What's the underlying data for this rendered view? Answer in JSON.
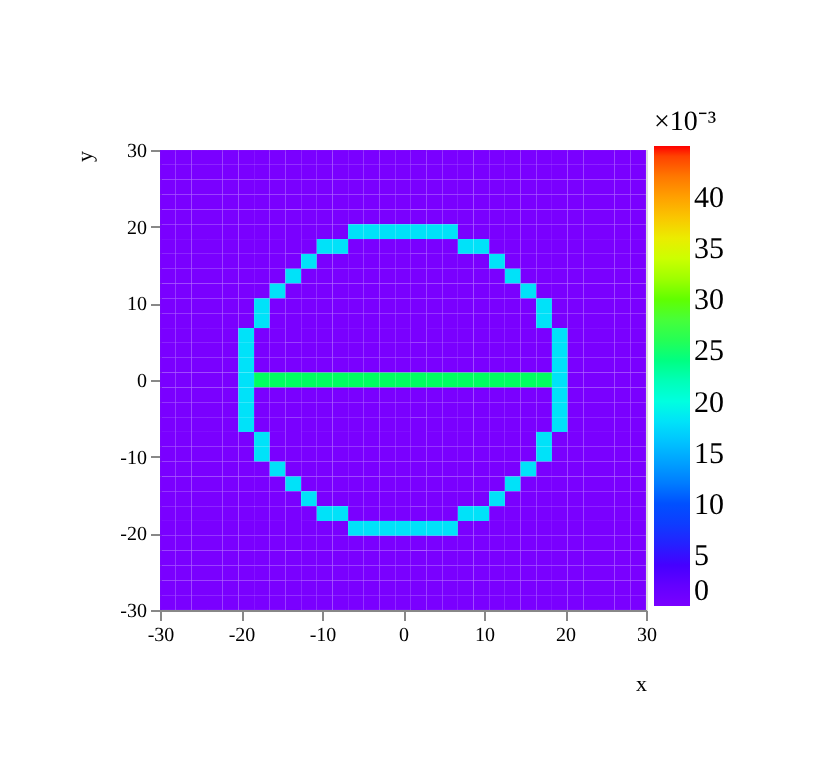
{
  "chart_data": {
    "type": "heatmap",
    "xlabel": "x",
    "ylabel": "y",
    "clabel": "×10⁻³",
    "x": [
      -29.03,
      -27.1,
      -25.16,
      -23.23,
      -21.29,
      -19.35,
      -17.42,
      -15.48,
      -13.55,
      -11.61,
      -9.68,
      -7.74,
      -5.81,
      -3.87,
      -1.94,
      0,
      1.94,
      3.87,
      5.81,
      7.74,
      9.68,
      11.61,
      13.55,
      15.48,
      17.42,
      19.35,
      21.29,
      23.23,
      25.16,
      27.1,
      29.03
    ],
    "y": [
      29.03,
      27.1,
      25.16,
      23.23,
      21.29,
      19.35,
      17.42,
      15.48,
      13.55,
      11.61,
      9.68,
      7.74,
      5.81,
      3.87,
      1.94,
      0,
      -1.94,
      -3.87,
      -5.81,
      -7.74,
      -9.68,
      -11.61,
      -13.55,
      -15.48,
      -17.42,
      -19.35,
      -21.29,
      -23.23,
      -25.16,
      -27.1,
      -29.03
    ],
    "xlim": [
      -30,
      30
    ],
    "ylim": [
      -30,
      30
    ],
    "xticks": [
      -30,
      -20,
      -10,
      0,
      10,
      20,
      30
    ],
    "yticks": [
      -30,
      -20,
      -10,
      0,
      10,
      20,
      30
    ],
    "clim": [
      0,
      45
    ],
    "cticks": [
      0,
      5,
      10,
      15,
      20,
      25,
      30,
      35,
      40
    ],
    "cells": [
      [
        0,
        0,
        0,
        0,
        0,
        0,
        0,
        0,
        0,
        0,
        0,
        0,
        0,
        0,
        0,
        0,
        0,
        0,
        0,
        0,
        0,
        0,
        0,
        0,
        0,
        0,
        0,
        0,
        0,
        0,
        0
      ],
      [
        0,
        0,
        0,
        0,
        0,
        0,
        0,
        0,
        0,
        0,
        0,
        0,
        0,
        0,
        0,
        0,
        0,
        0,
        0,
        0,
        0,
        0,
        0,
        0,
        0,
        0,
        0,
        0,
        0,
        0,
        0
      ],
      [
        0,
        0,
        0,
        0,
        0,
        0,
        0,
        0,
        0,
        0,
        0,
        0,
        0,
        0,
        0,
        0,
        0,
        0,
        0,
        0,
        0,
        0,
        0,
        0,
        0,
        0,
        0,
        0,
        0,
        0,
        0
      ],
      [
        0,
        0,
        0,
        0,
        0,
        0,
        0,
        0,
        0,
        0,
        0,
        0,
        0,
        0,
        0,
        0,
        0,
        0,
        0,
        0,
        0,
        0,
        0,
        0,
        0,
        0,
        0,
        0,
        0,
        0,
        0
      ],
      [
        0,
        0,
        0,
        0,
        0,
        0,
        0,
        0,
        0,
        0,
        0,
        0,
        0,
        0,
        0,
        0,
        0,
        0,
        0,
        0,
        0,
        0,
        0,
        0,
        0,
        0,
        0,
        0,
        0,
        0,
        0
      ],
      [
        0,
        0,
        0,
        0,
        0,
        0,
        0,
        0,
        0,
        0,
        0,
        0,
        18,
        18,
        18,
        18,
        18,
        18,
        18,
        0,
        0,
        0,
        0,
        0,
        0,
        0,
        0,
        0,
        0,
        0,
        0
      ],
      [
        0,
        0,
        0,
        0,
        0,
        0,
        0,
        0,
        0,
        0,
        18,
        18,
        0,
        0,
        0,
        0,
        0,
        0,
        0,
        18,
        18,
        0,
        0,
        0,
        0,
        0,
        0,
        0,
        0,
        0,
        0
      ],
      [
        0,
        0,
        0,
        0,
        0,
        0,
        0,
        0,
        0,
        18,
        0,
        0,
        0,
        0,
        0,
        0,
        0,
        0,
        0,
        0,
        0,
        18,
        0,
        0,
        0,
        0,
        0,
        0,
        0,
        0,
        0
      ],
      [
        0,
        0,
        0,
        0,
        0,
        0,
        0,
        0,
        18,
        0,
        0,
        0,
        0,
        0,
        0,
        0,
        0,
        0,
        0,
        0,
        0,
        0,
        18,
        0,
        0,
        0,
        0,
        0,
        0,
        0,
        0
      ],
      [
        0,
        0,
        0,
        0,
        0,
        0,
        0,
        18,
        0,
        0,
        0,
        0,
        0,
        0,
        0,
        0,
        0,
        0,
        0,
        0,
        0,
        0,
        0,
        18,
        0,
        0,
        0,
        0,
        0,
        0,
        0
      ],
      [
        0,
        0,
        0,
        0,
        0,
        0,
        18,
        0,
        0,
        0,
        0,
        0,
        0,
        0,
        0,
        0,
        0,
        0,
        0,
        0,
        0,
        0,
        0,
        0,
        18,
        0,
        0,
        0,
        0,
        0,
        0
      ],
      [
        0,
        0,
        0,
        0,
        0,
        0,
        18,
        0,
        0,
        0,
        0,
        0,
        0,
        0,
        0,
        0,
        0,
        0,
        0,
        0,
        0,
        0,
        0,
        0,
        18,
        0,
        0,
        0,
        0,
        0,
        0
      ],
      [
        0,
        0,
        0,
        0,
        0,
        18,
        0,
        0,
        0,
        0,
        0,
        0,
        0,
        0,
        0,
        0,
        0,
        0,
        0,
        0,
        0,
        0,
        0,
        0,
        0,
        18,
        0,
        0,
        0,
        0,
        0
      ],
      [
        0,
        0,
        0,
        0,
        0,
        18,
        0,
        0,
        0,
        0,
        0,
        0,
        0,
        0,
        0,
        0,
        0,
        0,
        0,
        0,
        0,
        0,
        0,
        0,
        0,
        18,
        0,
        0,
        0,
        0,
        0
      ],
      [
        0,
        0,
        0,
        0,
        0,
        18,
        0,
        0,
        0,
        0,
        0,
        0,
        0,
        0,
        0,
        0,
        0,
        0,
        0,
        0,
        0,
        0,
        0,
        0,
        0,
        18,
        0,
        0,
        0,
        0,
        0
      ],
      [
        0,
        0,
        0,
        0,
        0,
        18,
        25,
        25,
        25,
        25,
        25,
        25,
        25,
        25,
        25,
        25,
        25,
        25,
        25,
        25,
        25,
        25,
        25,
        25,
        25,
        18,
        0,
        0,
        0,
        0,
        0
      ],
      [
        0,
        0,
        0,
        0,
        0,
        18,
        0,
        0,
        0,
        0,
        0,
        0,
        0,
        0,
        0,
        0,
        0,
        0,
        0,
        0,
        0,
        0,
        0,
        0,
        0,
        18,
        0,
        0,
        0,
        0,
        0
      ],
      [
        0,
        0,
        0,
        0,
        0,
        18,
        0,
        0,
        0,
        0,
        0,
        0,
        0,
        0,
        0,
        0,
        0,
        0,
        0,
        0,
        0,
        0,
        0,
        0,
        0,
        18,
        0,
        0,
        0,
        0,
        0
      ],
      [
        0,
        0,
        0,
        0,
        0,
        18,
        0,
        0,
        0,
        0,
        0,
        0,
        0,
        0,
        0,
        0,
        0,
        0,
        0,
        0,
        0,
        0,
        0,
        0,
        0,
        18,
        0,
        0,
        0,
        0,
        0
      ],
      [
        0,
        0,
        0,
        0,
        0,
        0,
        18,
        0,
        0,
        0,
        0,
        0,
        0,
        0,
        0,
        0,
        0,
        0,
        0,
        0,
        0,
        0,
        0,
        0,
        18,
        0,
        0,
        0,
        0,
        0,
        0
      ],
      [
        0,
        0,
        0,
        0,
        0,
        0,
        18,
        0,
        0,
        0,
        0,
        0,
        0,
        0,
        0,
        0,
        0,
        0,
        0,
        0,
        0,
        0,
        0,
        0,
        18,
        0,
        0,
        0,
        0,
        0,
        0
      ],
      [
        0,
        0,
        0,
        0,
        0,
        0,
        0,
        18,
        0,
        0,
        0,
        0,
        0,
        0,
        0,
        0,
        0,
        0,
        0,
        0,
        0,
        0,
        0,
        18,
        0,
        0,
        0,
        0,
        0,
        0,
        0
      ],
      [
        0,
        0,
        0,
        0,
        0,
        0,
        0,
        0,
        18,
        0,
        0,
        0,
        0,
        0,
        0,
        0,
        0,
        0,
        0,
        0,
        0,
        0,
        18,
        0,
        0,
        0,
        0,
        0,
        0,
        0,
        0
      ],
      [
        0,
        0,
        0,
        0,
        0,
        0,
        0,
        0,
        0,
        18,
        0,
        0,
        0,
        0,
        0,
        0,
        0,
        0,
        0,
        0,
        0,
        18,
        0,
        0,
        0,
        0,
        0,
        0,
        0,
        0,
        0
      ],
      [
        0,
        0,
        0,
        0,
        0,
        0,
        0,
        0,
        0,
        0,
        18,
        18,
        0,
        0,
        0,
        0,
        0,
        0,
        0,
        18,
        18,
        0,
        0,
        0,
        0,
        0,
        0,
        0,
        0,
        0,
        0
      ],
      [
        0,
        0,
        0,
        0,
        0,
        0,
        0,
        0,
        0,
        0,
        0,
        0,
        18,
        18,
        18,
        18,
        18,
        18,
        18,
        0,
        0,
        0,
        0,
        0,
        0,
        0,
        0,
        0,
        0,
        0,
        0
      ],
      [
        0,
        0,
        0,
        0,
        0,
        0,
        0,
        0,
        0,
        0,
        0,
        0,
        0,
        0,
        0,
        0,
        0,
        0,
        0,
        0,
        0,
        0,
        0,
        0,
        0,
        0,
        0,
        0,
        0,
        0,
        0
      ],
      [
        0,
        0,
        0,
        0,
        0,
        0,
        0,
        0,
        0,
        0,
        0,
        0,
        0,
        0,
        0,
        0,
        0,
        0,
        0,
        0,
        0,
        0,
        0,
        0,
        0,
        0,
        0,
        0,
        0,
        0,
        0
      ],
      [
        0,
        0,
        0,
        0,
        0,
        0,
        0,
        0,
        0,
        0,
        0,
        0,
        0,
        0,
        0,
        0,
        0,
        0,
        0,
        0,
        0,
        0,
        0,
        0,
        0,
        0,
        0,
        0,
        0,
        0,
        0
      ],
      [
        0,
        0,
        0,
        0,
        0,
        0,
        0,
        0,
        0,
        0,
        0,
        0,
        0,
        0,
        0,
        0,
        0,
        0,
        0,
        0,
        0,
        0,
        0,
        0,
        0,
        0,
        0,
        0,
        0,
        0,
        0
      ],
      [
        0,
        0,
        0,
        0,
        0,
        0,
        0,
        0,
        0,
        0,
        0,
        0,
        0,
        0,
        0,
        0,
        0,
        0,
        0,
        0,
        0,
        0,
        0,
        0,
        0,
        0,
        0,
        0,
        0,
        0,
        0
      ]
    ]
  }
}
